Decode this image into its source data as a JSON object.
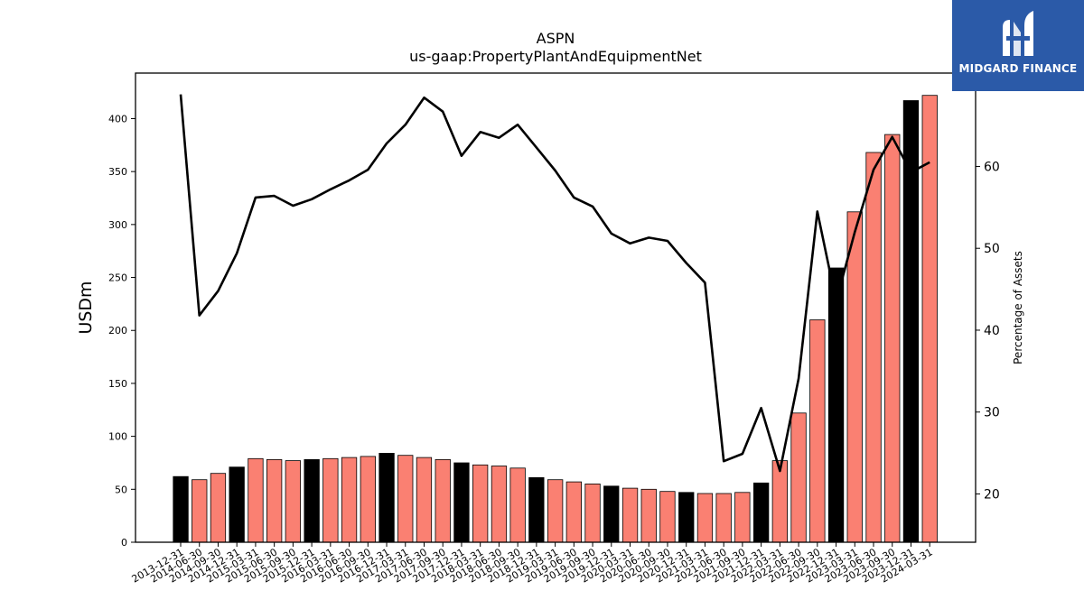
{
  "chart_data": {
    "type": "bar",
    "title": "ASPN",
    "subtitle": "us-gaap:PropertyPlantAndEquipmentNet",
    "ylabel": "USDm",
    "y2label": "Percentage of Assets",
    "ylim": [
      0,
      443
    ],
    "y2lim": [
      14.1,
      71.4
    ],
    "yticks": [
      0,
      50,
      100,
      150,
      200,
      250,
      300,
      350,
      400
    ],
    "y2ticks": [
      20,
      30,
      40,
      50,
      60
    ],
    "categories": [
      "2013-12-31",
      "2014-06-30",
      "2014-09-30",
      "2014-12-31",
      "2015-03-31",
      "2015-06-30",
      "2015-09-30",
      "2015-12-31",
      "2016-03-31",
      "2016-06-30",
      "2016-09-30",
      "2016-12-31",
      "2017-03-31",
      "2017-06-30",
      "2017-09-30",
      "2017-12-31",
      "2018-03-31",
      "2018-06-30",
      "2018-09-30",
      "2018-12-31",
      "2019-03-31",
      "2019-06-30",
      "2019-09-30",
      "2019-12-31",
      "2020-03-31",
      "2020-06-30",
      "2020-09-30",
      "2020-12-31",
      "2021-03-31",
      "2021-06-30",
      "2021-09-30",
      "2021-12-31",
      "2022-03-31",
      "2022-06-30",
      "2022-09-30",
      "2022-12-31",
      "2023-03-31",
      "2023-06-30",
      "2023-09-30",
      "2023-12-31",
      "2024-03-31"
    ],
    "series": [
      {
        "type": "bar",
        "values": [
          62,
          59,
          65,
          71,
          79,
          78,
          77,
          78,
          79,
          80,
          81,
          84,
          82,
          80,
          78,
          75,
          73,
          72,
          70,
          61,
          59,
          57,
          55,
          53,
          51,
          50,
          48,
          47,
          46,
          46,
          47,
          56,
          77,
          122,
          210,
          259,
          312,
          368,
          385,
          417,
          422
        ],
        "colors": [
          "#000000",
          "#fa8072",
          "#fa8072",
          "#000000",
          "#fa8072",
          "#fa8072",
          "#fa8072",
          "#000000",
          "#fa8072",
          "#fa8072",
          "#fa8072",
          "#000000",
          "#fa8072",
          "#fa8072",
          "#fa8072",
          "#000000",
          "#fa8072",
          "#fa8072",
          "#fa8072",
          "#000000",
          "#fa8072",
          "#fa8072",
          "#fa8072",
          "#000000",
          "#fa8072",
          "#fa8072",
          "#fa8072",
          "#000000",
          "#fa8072",
          "#fa8072",
          "#fa8072",
          "#000000",
          "#fa8072",
          "#fa8072",
          "#fa8072",
          "#000000",
          "#fa8072",
          "#fa8072",
          "#fa8072",
          "#000000",
          "#fa8072"
        ]
      },
      {
        "type": "line",
        "axis": "right",
        "color": "#000000",
        "values": [
          68.8,
          41.8,
          44.8,
          49.4,
          56.2,
          56.4,
          55.2,
          56.0,
          57.2,
          58.3,
          59.6,
          62.8,
          65.1,
          68.4,
          66.7,
          61.3,
          64.2,
          63.5,
          65.1,
          62.3,
          59.5,
          56.2,
          55.1,
          51.8,
          50.6,
          51.3,
          50.9,
          48.2,
          45.8,
          24.0,
          24.9,
          30.5,
          22.8,
          34.1,
          54.5,
          43.5,
          52.0,
          59.6,
          63.6,
          59.3,
          60.5
        ]
      }
    ],
    "grid": false,
    "legend": "none"
  },
  "logo": {
    "text": "MIDGARD FINANCE",
    "bg_color": "#2b5aa8",
    "icon": "midgard-logo-icon"
  }
}
